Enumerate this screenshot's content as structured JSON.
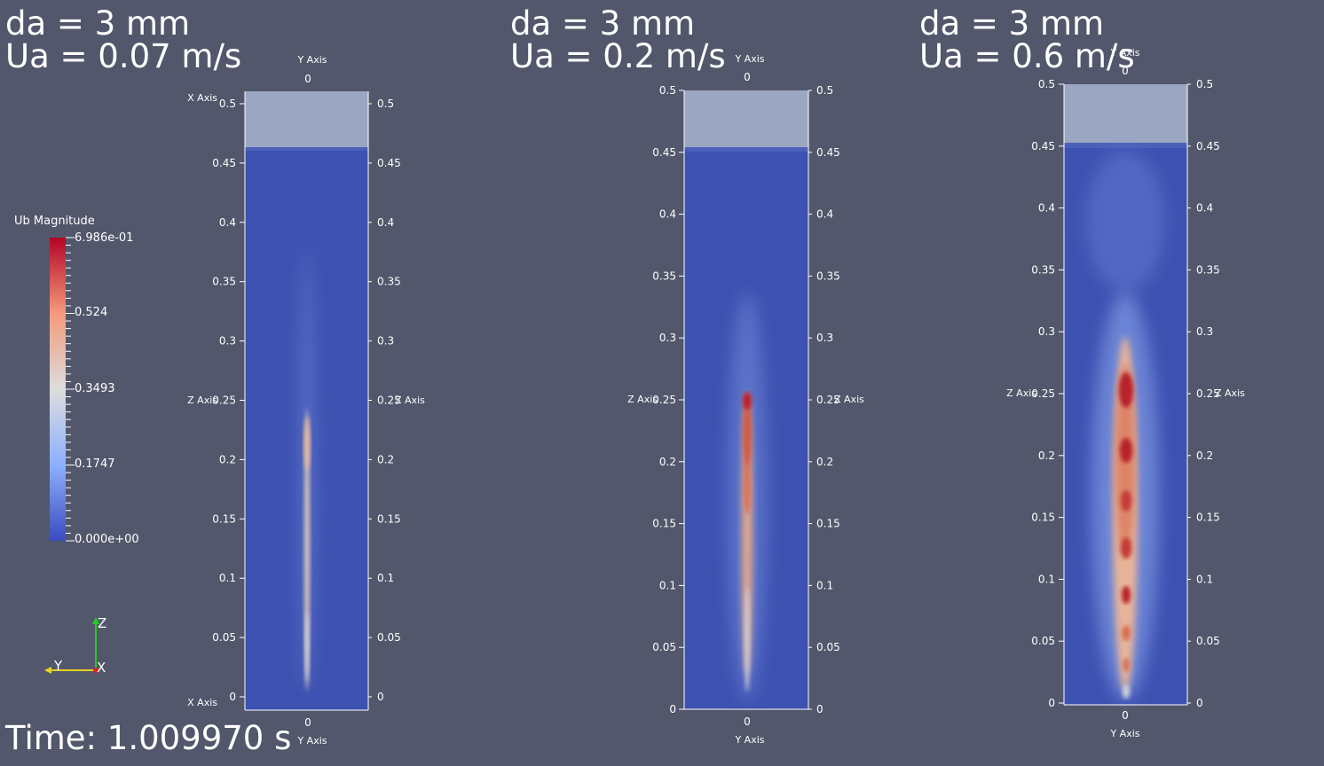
{
  "panels": [
    {
      "da_label": "da = 3 mm",
      "ua_label": "Ua = 0.07 m/s"
    },
    {
      "da_label": "da = 3 mm",
      "ua_label": "Ua = 0.2 m/s"
    },
    {
      "da_label": "da = 3 mm",
      "ua_label": "Ua = 0.6 m/s"
    }
  ],
  "axes": {
    "x_axis_label": "X Axis",
    "y_axis_label": "Y Axis",
    "z_axis_label": "Z Axis",
    "y_tick": "0",
    "z_ticks": [
      "0",
      "0.05",
      "0.1",
      "0.15",
      "0.2",
      "0.25",
      "0.3",
      "0.35",
      "0.4",
      "0.45",
      "0.5"
    ]
  },
  "colorbar": {
    "title": "Ub Magnitude",
    "labels": [
      "6.986e-01",
      "0.524",
      "0.3493",
      "0.1747",
      "0.000e+00"
    ],
    "colors": {
      "high": "#b2182b",
      "mid": "#dddddd",
      "low": "#3b4cc0"
    }
  },
  "orientation": {
    "z": "Z",
    "y": "Y",
    "x": "X"
  },
  "time_label": "Time: 1.009970 s"
}
